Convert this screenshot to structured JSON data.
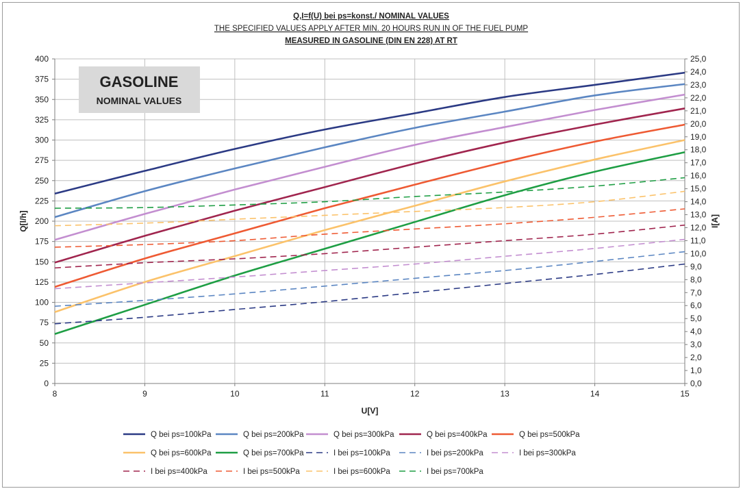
{
  "chart_data": {
    "type": "line",
    "title": [
      "Q,I=f(U) bei ps=konst./ NOMINAL VALUES",
      "THE SPECIFIED VALUES APPLY AFTER MIN. 20 HOURS RUN IN OF THE FUEL PUMP",
      "MEASURED IN GASOLINE (DIN EN 228) AT RT"
    ],
    "badge": {
      "title": "GASOLINE",
      "subtitle": "NOMINAL VALUES"
    },
    "xlabel": "U[V]",
    "ylabel": "Q[l/h]",
    "y2label": "I[A]",
    "xlim": [
      8,
      15
    ],
    "ylim": [
      0,
      400
    ],
    "y2lim": [
      0,
      25
    ],
    "x_ticks": [
      "8",
      "9",
      "10",
      "11",
      "12",
      "13",
      "14",
      "15"
    ],
    "y_ticks": [
      "0",
      "25",
      "50",
      "75",
      "100",
      "125",
      "150",
      "175",
      "200",
      "225",
      "250",
      "275",
      "300",
      "325",
      "350",
      "375",
      "400"
    ],
    "y2_ticks": [
      "0,0",
      "1,0",
      "2,0",
      "3,0",
      "4,0",
      "5,0",
      "6,0",
      "7,0",
      "8,0",
      "9,0",
      "10,0",
      "11,0",
      "12,0",
      "13,0",
      "14,0",
      "15,0",
      "16,0",
      "17,0",
      "18,0",
      "19,0",
      "20,0",
      "21,0",
      "22,0",
      "23,0",
      "24,0",
      "25,0"
    ],
    "grid": true,
    "legend_position": "bottom",
    "x": [
      8,
      9,
      10,
      11,
      12,
      13,
      14,
      15
    ],
    "series": [
      {
        "name": "Q  bei ps=100kPa",
        "axis": "left",
        "style": "solid",
        "color": "#2b3a84",
        "values": [
          234,
          262,
          289,
          313,
          333,
          353,
          368,
          383
        ]
      },
      {
        "name": "Q  bei ps=200kPa",
        "axis": "left",
        "style": "solid",
        "color": "#5b86c2",
        "values": [
          205,
          237,
          265,
          291,
          315,
          335,
          355,
          369
        ]
      },
      {
        "name": "Q  bei ps=300kPa",
        "axis": "left",
        "style": "solid",
        "color": "#c38ed0",
        "values": [
          177,
          209,
          239,
          267,
          294,
          316,
          337,
          356
        ]
      },
      {
        "name": "Q  bei ps=400kPa",
        "axis": "left",
        "style": "solid",
        "color": "#a0254e",
        "values": [
          149,
          182,
          213,
          242,
          271,
          297,
          319,
          339
        ]
      },
      {
        "name": "Q  bei ps=500kPa",
        "axis": "left",
        "style": "solid",
        "color": "#ee5a33",
        "values": [
          119,
          154,
          185,
          216,
          245,
          273,
          298,
          319
        ]
      },
      {
        "name": "Q  bei ps=600kPa",
        "axis": "left",
        "style": "solid",
        "color": "#fbc26a",
        "values": [
          88,
          125,
          157,
          189,
          219,
          249,
          276,
          300
        ]
      },
      {
        "name": "Q  bei ps=700kPa",
        "axis": "left",
        "style": "solid",
        "color": "#1e9e44",
        "values": [
          61,
          97,
          133,
          166,
          199,
          232,
          261,
          285
        ]
      },
      {
        "name": "I  bei ps=100kPa",
        "axis": "right",
        "style": "dashed",
        "color": "#2b3a84",
        "values": [
          4.6,
          5.1,
          5.7,
          6.3,
          7.0,
          7.7,
          8.4,
          9.2
        ]
      },
      {
        "name": "I  bei ps=200kPa",
        "axis": "right",
        "style": "dashed",
        "color": "#5b86c2",
        "values": [
          5.95,
          6.4,
          6.9,
          7.5,
          8.1,
          8.7,
          9.4,
          10.15
        ]
      },
      {
        "name": "I  bei ps=300kPa",
        "axis": "right",
        "style": "dashed",
        "color": "#c38ed0",
        "values": [
          7.3,
          7.75,
          8.2,
          8.7,
          9.2,
          9.8,
          10.4,
          11.1
        ]
      },
      {
        "name": "I  bei ps=400kPa",
        "axis": "right",
        "style": "dashed",
        "color": "#a0254e",
        "values": [
          8.9,
          9.3,
          9.6,
          10.0,
          10.5,
          11.0,
          11.5,
          12.2
        ]
      },
      {
        "name": "I  bei ps=500kPa",
        "axis": "right",
        "style": "dashed",
        "color": "#ee5a33",
        "values": [
          10.5,
          10.7,
          11.0,
          11.5,
          11.9,
          12.3,
          12.8,
          13.45
        ]
      },
      {
        "name": "I  bei ps=600kPa",
        "axis": "right",
        "style": "dashed",
        "color": "#fbc26a",
        "values": [
          12.15,
          12.35,
          12.65,
          12.95,
          13.25,
          13.55,
          14.0,
          14.8
        ]
      },
      {
        "name": "I  bei ps=700kPa",
        "axis": "right",
        "style": "dashed",
        "color": "#1e9e44",
        "values": [
          13.5,
          13.55,
          13.75,
          14.0,
          14.4,
          14.75,
          15.2,
          15.85
        ]
      }
    ]
  }
}
